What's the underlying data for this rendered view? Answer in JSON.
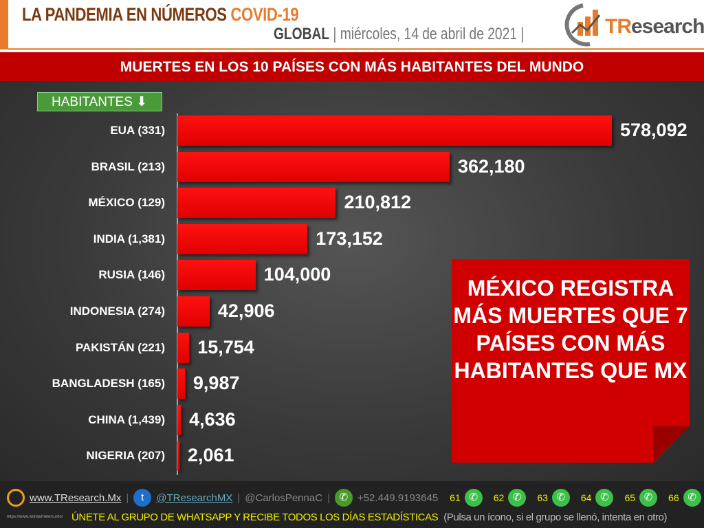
{
  "header": {
    "title": "LA PANDEMIA EN NÚMEROS",
    "title_accent": "COVID-19",
    "scope": "GLOBAL",
    "date": "miércoles, 14 de abril de 2021",
    "logo": "TResearch"
  },
  "banner": "MUERTES EN LOS 10 PAÍSES CON MÁS HABITANTES DEL MUNDO",
  "sort_button": "HABITANTES",
  "chart_data": {
    "type": "bar",
    "orientation": "horizontal",
    "categories": [
      "EUA (331)",
      "BRASIL (213)",
      "MÉXICO (129)",
      "INDIA (1,381)",
      "RUSIA (146)",
      "INDONESIA (274)",
      "PAKISTÁN (221)",
      "BANGLADESH (165)",
      "CHINA (1,439)",
      "NIGERIA (207)"
    ],
    "values": [
      578092,
      362180,
      210812,
      173152,
      104000,
      42906,
      15754,
      9987,
      4636,
      2061
    ],
    "labels": [
      "578,092",
      "362,180",
      "210,812",
      "173,152",
      "104,000",
      "42,906",
      "15,754",
      "9,987",
      "4,636",
      "2,061"
    ],
    "bar_color": "#ff0000"
  },
  "callout": "MÉXICO REGISTRA MÁS MUERTES QUE 7 PAÍSES CON MÁS HABITANTES QUE MX",
  "footer": {
    "website": "www.TResearch.Mx",
    "twitter": "@TResearchMX",
    "handle": "@CarlosPennaC",
    "phone": "+52.449.9193645",
    "groups": [
      "61",
      "62",
      "63",
      "64",
      "65",
      "66"
    ],
    "source": "https://www.worldometers.info/",
    "cta": "ÚNETE AL GRUPO DE WHATSAPP Y RECIBE TODOS LOS DÍAS ESTADÍSTICAS",
    "cta_note": "(Pulsa un ícono, si el grupo se llenó, intenta en otro)"
  }
}
